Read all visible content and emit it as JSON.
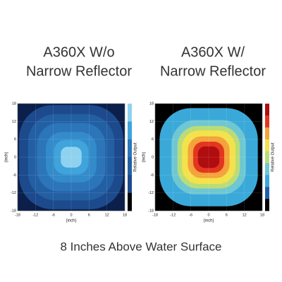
{
  "chart_data": [
    {
      "type": "contour",
      "title": [
        "A360X W/o",
        "Narrow Reflector"
      ],
      "xlabel": "(inch)",
      "ylabel": "(inch)",
      "colorbar_label": "Relative Output",
      "xlim": [
        -18,
        18
      ],
      "ylim": [
        -18,
        18
      ],
      "xticks": [
        -18,
        -12,
        -6,
        0,
        6,
        12,
        18
      ],
      "yticks": [
        -18,
        -12,
        -6,
        0,
        6,
        12,
        18
      ],
      "background": "#0b1f4a",
      "contours": [
        {
          "color": "#1d4a8c",
          "half_width": 17.5
        },
        {
          "color": "#235fa3",
          "half_width": 14.5
        },
        {
          "color": "#2b75b8",
          "half_width": 11.5
        },
        {
          "color": "#338bc9",
          "half_width": 8.5
        },
        {
          "color": "#3fa3dc",
          "half_width": 5.8
        },
        {
          "color": "#8fd2f0",
          "half_width": 3.5
        }
      ],
      "colorbar": [
        "#8fd2f0",
        "#3fa3dc",
        "#2b75b8",
        "#235fa3",
        "#1d4a8c",
        "#000000"
      ]
    },
    {
      "type": "contour",
      "title": [
        "A360X W/",
        "Narrow Reflector"
      ],
      "xlabel": "(inch)",
      "ylabel": "(inch)",
      "colorbar_label": "Relative Output",
      "xlim": [
        -18,
        18
      ],
      "ylim": [
        -18,
        18
      ],
      "xticks": [
        -18,
        -12,
        -6,
        0,
        6,
        12,
        18
      ],
      "yticks": [
        -18,
        -12,
        -6,
        0,
        6,
        12,
        18
      ],
      "background": "#000000",
      "contours": [
        {
          "color": "#3aa9d9",
          "half_width": 16.5
        },
        {
          "color": "#6ec7d2",
          "half_width": 12.5
        },
        {
          "color": "#b9dc7a",
          "half_width": 10.5
        },
        {
          "color": "#f3e24a",
          "half_width": 9
        },
        {
          "color": "#f4a23a",
          "half_width": 7
        },
        {
          "color": "#e2361f",
          "half_width": 5.2
        },
        {
          "color": "#b00d10",
          "half_width": 3.6
        }
      ],
      "colorbar": [
        "#b00d10",
        "#e2361f",
        "#f4a23a",
        "#f3e24a",
        "#b9dc7a",
        "#6ec7d2",
        "#3aa9d9",
        "#1f5fa8",
        "#000000"
      ]
    }
  ],
  "caption": "8 Inches Above Water Surface"
}
